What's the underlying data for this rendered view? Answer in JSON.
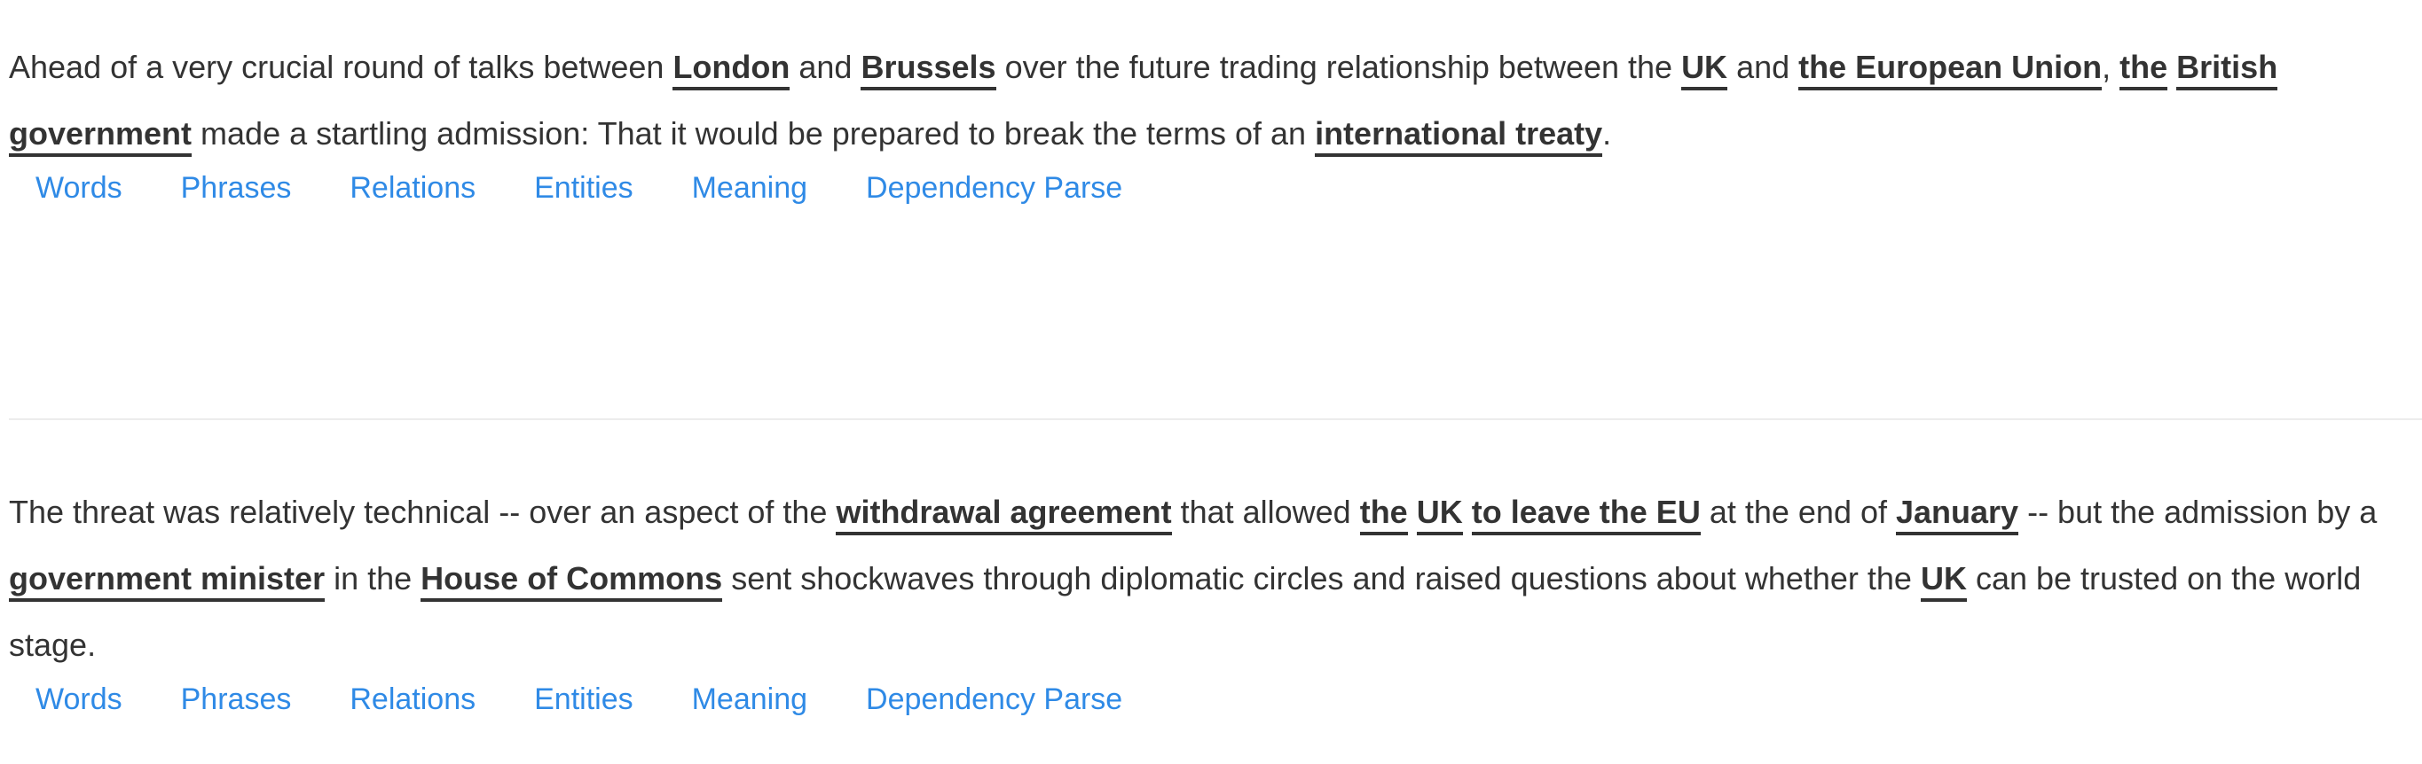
{
  "sentences": [
    {
      "segments": [
        {
          "t": "Ahead of a very crucial round of talks between ",
          "b": false
        },
        {
          "t": "London",
          "b": true
        },
        {
          "t": " and ",
          "b": false
        },
        {
          "t": "Brussels",
          "b": true
        },
        {
          "t": " over the future trading relationship between the ",
          "b": false
        },
        {
          "t": "UK",
          "b": true
        },
        {
          "t": " and ",
          "b": false
        },
        {
          "t": "the European Union",
          "b": true
        },
        {
          "t": ", ",
          "b": false
        },
        {
          "t": "the",
          "b": true
        },
        {
          "t": " ",
          "b": false
        },
        {
          "t": "British",
          "b": true
        },
        {
          "t": " ",
          "b": false
        },
        {
          "t": "government",
          "b": true
        },
        {
          "t": " made a startling admission: That it would be prepared to break the terms of an ",
          "b": false
        },
        {
          "t": "international treaty",
          "b": true
        },
        {
          "t": ".",
          "b": false
        }
      ]
    },
    {
      "segments": [
        {
          "t": "The threat was relatively technical -- over an aspect of the ",
          "b": false
        },
        {
          "t": "withdrawal agreement",
          "b": true
        },
        {
          "t": " that allowed ",
          "b": false
        },
        {
          "t": "the",
          "b": true
        },
        {
          "t": " ",
          "b": false
        },
        {
          "t": "UK",
          "b": true
        },
        {
          "t": " ",
          "b": false
        },
        {
          "t": "to leave the EU",
          "b": true
        },
        {
          "t": " at the end of ",
          "b": false
        },
        {
          "t": "January",
          "b": true
        },
        {
          "t": " -- but the admission by a ",
          "b": false
        },
        {
          "t": "government minister",
          "b": true
        },
        {
          "t": " in the ",
          "b": false
        },
        {
          "t": "House of Commons",
          "b": true
        },
        {
          "t": " sent shockwaves through diplomatic circles and raised questions about whether the ",
          "b": false
        },
        {
          "t": "UK",
          "b": true
        },
        {
          "t": " can be trusted on the world stage.",
          "b": false
        }
      ]
    }
  ],
  "tabs": [
    "Words",
    "Phrases",
    "Relations",
    "Entities",
    "Meaning",
    "Dependency Parse"
  ],
  "colors": {
    "text": "#333333",
    "link": "#2f8ae6",
    "divider": "#ececec"
  }
}
